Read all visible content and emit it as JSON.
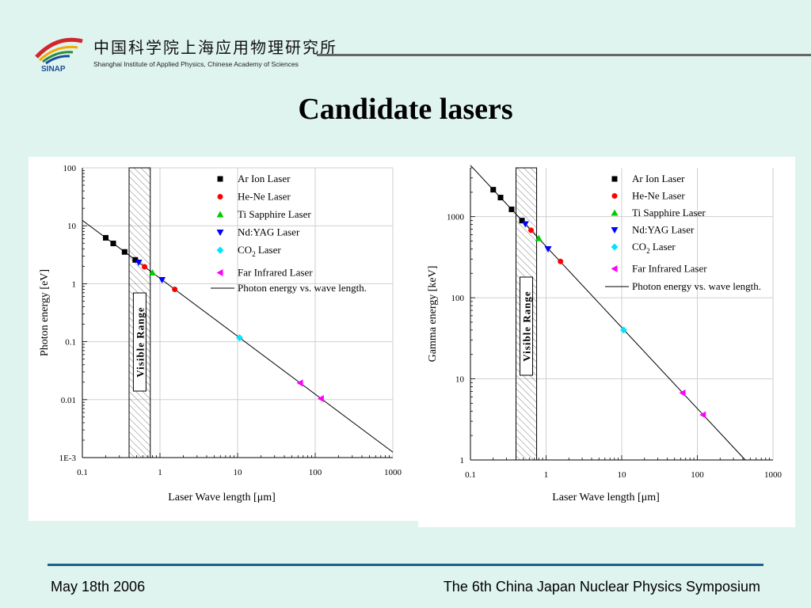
{
  "header": {
    "org_cn": "中国科学院上海应用物理研究所",
    "org_en": "Shanghai Institute of Applied Physics, Chinese Academy of Sciences",
    "logo_text": "SINAP"
  },
  "slide": {
    "title": "Candidate lasers"
  },
  "footer": {
    "date": "May 18th 2006",
    "event": "The 6th China Japan Nuclear Physics Symposium"
  },
  "colors": {
    "background": "#dff4ef",
    "footer_line": "#1f5f8b",
    "header_line": "#666666"
  },
  "chart_data": [
    {
      "type": "scatter",
      "xscale": "log",
      "yscale": "log",
      "xlabel": "Laser Wave length [μm]",
      "ylabel": "Photon energy [eV]",
      "xlim": [
        0.1,
        1000
      ],
      "ylim": [
        0.001,
        100
      ],
      "xticks": [
        "0.1",
        "1",
        "10",
        "100",
        "1000"
      ],
      "yticks": [
        "1E-3",
        "0.01",
        "0.1",
        "1",
        "10",
        "100"
      ],
      "band": {
        "from": 0.4,
        "to": 0.75,
        "label": "Visible Range"
      },
      "line": {
        "name": "Photon energy vs. wave length.",
        "x": [
          0.1,
          1000
        ],
        "y": [
          12.4,
          0.00124
        ]
      },
      "series": [
        {
          "name": "Ar Ion Laser",
          "marker": "square",
          "color": "#000000",
          "x": [
            0.2,
            0.25,
            0.35,
            0.48
          ],
          "y": [
            6.2,
            4.96,
            3.54,
            2.58
          ]
        },
        {
          "name": "He-Ne Laser",
          "marker": "circle",
          "color": "#ff0000",
          "x": [
            0.6328,
            1.55
          ],
          "y": [
            1.96,
            0.8
          ]
        },
        {
          "name": "Ti Sapphire Laser",
          "marker": "triangle-up",
          "color": "#00cc00",
          "x": [
            0.8
          ],
          "y": [
            1.55
          ]
        },
        {
          "name": "Nd:YAG Laser",
          "marker": "triangle-down",
          "color": "#0000ff",
          "x": [
            0.532,
            1.064
          ],
          "y": [
            2.33,
            1.165
          ]
        },
        {
          "name": "CO2 Laser",
          "marker": "diamond",
          "color": "#00e5ff",
          "x": [
            10.6
          ],
          "y": [
            0.117
          ]
        },
        {
          "name": "Far Infrared Laser",
          "marker": "triangle-left",
          "color": "#ff00ff",
          "x": [
            64,
            119
          ],
          "y": [
            0.0194,
            0.0104
          ]
        }
      ]
    },
    {
      "type": "scatter",
      "xscale": "log",
      "yscale": "log",
      "xlabel": "Laser Wave length [μm]",
      "ylabel": "Gamma energy [keV]",
      "xlim": [
        0.1,
        1000
      ],
      "ylim": [
        1,
        4000
      ],
      "xticks": [
        "0.1",
        "1",
        "10",
        "100",
        "1000"
      ],
      "yticks": [
        "1",
        "10",
        "100",
        "1000"
      ],
      "band": {
        "from": 0.4,
        "to": 0.75,
        "label": "Visible Range"
      },
      "line": {
        "name": "Photon energy vs. wave length.",
        "x": [
          0.1,
          430
        ],
        "y": [
          4300,
          1
        ]
      },
      "series": [
        {
          "name": "Ar Ion Laser",
          "marker": "square",
          "color": "#000000",
          "x": [
            0.2,
            0.25,
            0.35,
            0.48
          ],
          "y": [
            2150,
            1720,
            1230,
            895
          ]
        },
        {
          "name": "He-Ne Laser",
          "marker": "circle",
          "color": "#ff0000",
          "x": [
            0.6328,
            1.55
          ],
          "y": [
            680,
            280
          ]
        },
        {
          "name": "Ti Sapphire Laser",
          "marker": "triangle-up",
          "color": "#00cc00",
          "x": [
            0.8
          ],
          "y": [
            540
          ]
        },
        {
          "name": "Nd:YAG Laser",
          "marker": "triangle-down",
          "color": "#0000ff",
          "x": [
            0.532,
            1.064
          ],
          "y": [
            810,
            400
          ]
        },
        {
          "name": "CO2 Laser",
          "marker": "diamond",
          "color": "#00e5ff",
          "x": [
            10.6
          ],
          "y": [
            40
          ]
        },
        {
          "name": "Far Infrared Laser",
          "marker": "triangle-left",
          "color": "#ff00ff",
          "x": [
            64,
            119
          ],
          "y": [
            6.7,
            3.6
          ]
        }
      ]
    }
  ]
}
